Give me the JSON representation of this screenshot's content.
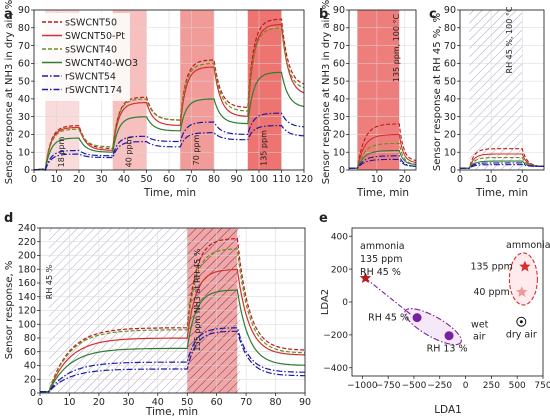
{
  "colors": {
    "dark_red": "#b71c1c",
    "red": "#d32f2f",
    "olive": "#6e8b1f",
    "green": "#2e7d32",
    "blue": "#1a1aa6",
    "violet": "#7b1fa2",
    "hatch": "#9c8ab7",
    "band": "#ef9a9a"
  },
  "chart_data": [
    {
      "panel": "a",
      "type": "line",
      "ylabel": "Sensor response at NH3 in dry air, %",
      "xlabel": "Time, min",
      "xlim": [
        0,
        120
      ],
      "ylim": [
        0,
        90
      ],
      "xticks": [
        0,
        10,
        20,
        30,
        40,
        50,
        60,
        70,
        80,
        90,
        100,
        110,
        120
      ],
      "yticks": [
        0,
        10,
        20,
        30,
        40,
        50,
        60,
        70,
        80,
        90
      ],
      "grid": true,
      "legend_position": "top-left",
      "exposure_bands": [
        {
          "start": 5,
          "end": 20,
          "label": "18 ppm"
        },
        {
          "start": 35,
          "end": 50,
          "label": "40 ppm"
        },
        {
          "start": 65,
          "end": 80,
          "label": "70 ppm"
        },
        {
          "start": 95,
          "end": 110,
          "label": "135 ppm"
        }
      ],
      "series": [
        {
          "name": "sSWCNT50",
          "style": "dashed",
          "color": "dark_red",
          "plateaus": [
            25,
            41,
            62,
            85
          ],
          "floor": [
            12,
            28,
            35,
            47
          ]
        },
        {
          "name": "SWCNT50-Pt",
          "style": "solid",
          "color": "red",
          "plateaus": [
            24,
            38,
            58,
            82
          ],
          "floor": [
            11,
            25,
            30,
            42
          ]
        },
        {
          "name": "sSWCNT40",
          "style": "dashed",
          "color": "olive",
          "plateaus": [
            23,
            40,
            60,
            80
          ],
          "floor": [
            13,
            28,
            33,
            45
          ]
        },
        {
          "name": "SWCNT40-WO3",
          "style": "solid",
          "color": "green",
          "plateaus": [
            18,
            30,
            40,
            55
          ],
          "floor": [
            10,
            22,
            26,
            35
          ]
        },
        {
          "name": "rSWCNT54",
          "style": "dashdot",
          "color": "blue",
          "plateaus": [
            11,
            19,
            27,
            32
          ],
          "floor": [
            8,
            16,
            20,
            24
          ]
        },
        {
          "name": "rSWCNT174",
          "style": "dashdot",
          "color": "blue",
          "plateaus": [
            9,
            16,
            21,
            25
          ],
          "floor": [
            7,
            13,
            17,
            19
          ]
        }
      ]
    },
    {
      "panel": "b",
      "type": "line",
      "ylabel": "Sensor response at NH3 in dry air, %",
      "xlabel": "Time, min",
      "xlim": [
        0,
        24
      ],
      "ylim": [
        0,
        90
      ],
      "xticks": [
        10,
        20
      ],
      "yticks": [
        0,
        10,
        20,
        30,
        40,
        50,
        60,
        70,
        80,
        90
      ],
      "band": {
        "start": 3,
        "end": 18,
        "label": "135 ppm, 100 °C"
      },
      "plateaus": [
        26,
        20,
        15,
        11,
        8,
        6
      ],
      "floors": [
        5,
        4,
        3,
        3,
        2,
        2
      ]
    },
    {
      "panel": "c",
      "type": "line",
      "ylabel": "Sensor response at RH 45 %, %",
      "xlabel": "Time, min",
      "xlim": [
        0,
        27
      ],
      "ylim": [
        0,
        90
      ],
      "xticks": [
        0,
        10,
        20
      ],
      "yticks": [
        0,
        10,
        20,
        30,
        40,
        50,
        60,
        70,
        80,
        90
      ],
      "band": {
        "start": 3,
        "end": 20,
        "label": "RH 45 %, 100 °C"
      },
      "plateaus": [
        12,
        9,
        7,
        5,
        4,
        3
      ]
    },
    {
      "panel": "d",
      "type": "line",
      "ylabel": "Sensor response, %",
      "xlabel": "Time, min",
      "xlim": [
        0,
        90
      ],
      "ylim": [
        0,
        240
      ],
      "xticks": [
        0,
        10,
        20,
        30,
        40,
        50,
        60,
        70,
        80,
        90
      ],
      "yticks": [
        0,
        20,
        40,
        60,
        80,
        100,
        120,
        140,
        160,
        180,
        200,
        220,
        240
      ],
      "humid_band": {
        "start": 3,
        "end": 68,
        "label": "RH 45 %"
      },
      "nh3_band": {
        "start": 50,
        "end": 67,
        "label": "135 ppm NH3 at RH 45 %"
      },
      "phase1_plateaus": [
        95,
        80,
        92,
        65,
        45,
        35
      ],
      "phase2_peaks": [
        225,
        180,
        210,
        150,
        95,
        90
      ],
      "final_values": [
        62,
        55,
        58,
        40,
        30,
        25
      ]
    },
    {
      "panel": "e",
      "type": "scatter",
      "xlabel": "LDA1",
      "ylabel": "LDA2",
      "xlim": [
        -1100,
        750
      ],
      "ylim": [
        -450,
        450
      ],
      "xticks": [
        -1000,
        -750,
        -500,
        -250,
        0,
        250,
        500,
        750
      ],
      "yticks": [
        -400,
        -200,
        0,
        200,
        400
      ],
      "points": [
        {
          "label": "ammonia 135 ppm RH 45 %",
          "x": -970,
          "y": 145,
          "marker": "star",
          "color": "dark_red"
        },
        {
          "label": "RH 45 %",
          "x": -470,
          "y": -95,
          "marker": "circle",
          "color": "violet"
        },
        {
          "label": "RH 13 %",
          "x": -160,
          "y": -205,
          "marker": "circle",
          "color": "violet"
        },
        {
          "label": "135 ppm",
          "x": 575,
          "y": 215,
          "marker": "star",
          "color": "red"
        },
        {
          "label": "40 ppm",
          "x": 545,
          "y": 60,
          "marker": "star",
          "color": "band"
        },
        {
          "label": "dry air",
          "x": 540,
          "y": -120,
          "marker": "target",
          "color": "dark_red"
        }
      ],
      "text_labels": {
        "ammonia_top": "ammonia",
        "ammonia_conc": "135 ppm",
        "ammonia_rh": "RH 45 %",
        "ammonia_right": "ammonia",
        "wet_air_1": "wet",
        "wet_air_2": "air"
      }
    }
  ],
  "panel_letters": [
    "a",
    "b",
    "c",
    "d",
    "e"
  ]
}
